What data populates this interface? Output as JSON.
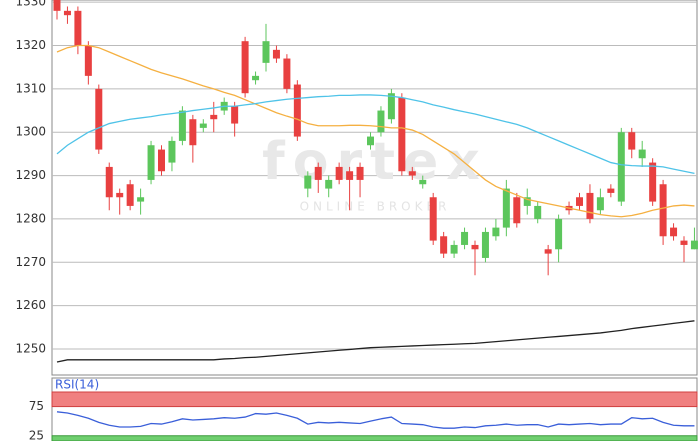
{
  "chart_data": {
    "type": "candlestick",
    "watermark": "fortex",
    "watermark_sub": "ONLINE BROKER",
    "ylim": [
      1244,
      1330.5
    ],
    "yticks": [
      1250,
      1260,
      1270,
      1280,
      1290,
      1300,
      1310,
      1320,
      1330
    ],
    "grid": true,
    "up_color": "#5cc65c",
    "down_color": "#e84040",
    "open": [
      1331,
      1328,
      1328,
      1320,
      1310,
      1292,
      1286,
      1288,
      1284,
      1289,
      1296,
      1293,
      1298,
      1303,
      1301,
      1304,
      1305,
      1306,
      1321,
      1312,
      1316,
      1319,
      1317,
      1311,
      1287,
      1292,
      1287,
      1292,
      1291,
      1292,
      1297,
      1300,
      1303,
      1308,
      1291,
      1288,
      1285,
      1276,
      1272,
      1274,
      1274,
      1271,
      1276,
      1278,
      1285,
      1283,
      1280,
      1273,
      1273,
      1283,
      1285,
      1286,
      1282,
      1287,
      1284,
      1300,
      1294,
      1293,
      1288,
      1278,
      1275,
      1273
    ],
    "high": [
      1332,
      1329,
      1329,
      1321,
      1311,
      1293,
      1287,
      1289,
      1287,
      1298,
      1297,
      1299,
      1306,
      1304,
      1303,
      1307,
      1308,
      1307,
      1322,
      1314,
      1325,
      1320,
      1318,
      1312,
      1291,
      1293,
      1290,
      1293,
      1292,
      1293,
      1300,
      1306,
      1310,
      1309,
      1292,
      1290,
      1286,
      1277,
      1275,
      1278,
      1275,
      1278,
      1280,
      1289,
      1286,
      1287,
      1284,
      1274,
      1281,
      1284,
      1286,
      1288,
      1287,
      1288,
      1301,
      1301,
      1298,
      1294,
      1289,
      1279,
      1276,
      1278
    ],
    "low": [
      1326,
      1325,
      1318,
      1311,
      1295,
      1282,
      1281,
      1282,
      1281,
      1288,
      1290,
      1291,
      1297,
      1293,
      1300,
      1300,
      1304,
      1299,
      1308,
      1311,
      1314,
      1316,
      1309,
      1298,
      1285,
      1286,
      1285,
      1288,
      1282,
      1285,
      1296,
      1299,
      1302,
      1290,
      1289,
      1287,
      1274,
      1271,
      1271,
      1273,
      1267,
      1270,
      1275,
      1276,
      1278,
      1281,
      1279,
      1267,
      1270,
      1281,
      1282,
      1279,
      1281,
      1285,
      1283,
      1294,
      1292,
      1283,
      1274,
      1275,
      1270,
      1273
    ],
    "close": [
      1328,
      1327,
      1320,
      1313,
      1296,
      1285,
      1285,
      1283,
      1285,
      1297,
      1291,
      1298,
      1305,
      1297,
      1302,
      1303,
      1307,
      1302,
      1309,
      1313,
      1321,
      1317,
      1310,
      1299,
      1290,
      1289,
      1289,
      1289,
      1289,
      1289,
      1299,
      1305,
      1309,
      1291,
      1290,
      1289,
      1275,
      1272,
      1274,
      1277,
      1273,
      1277,
      1278,
      1287,
      1279,
      1285,
      1283,
      1272,
      1280,
      1282,
      1283,
      1280,
      1285,
      1286,
      1300,
      1296,
      1296,
      1284,
      1276,
      1276,
      1274,
      1275
    ],
    "lines": [
      {
        "color": "#f5b041",
        "values": [
          1318.5,
          1319.5,
          1320,
          1320,
          1319.5,
          1318.5,
          1317.5,
          1316.5,
          1315.5,
          1314.5,
          1313.7,
          1313,
          1312.3,
          1311.5,
          1310.7,
          1310,
          1309.2,
          1308.5,
          1307.5,
          1306.5,
          1305.5,
          1304.5,
          1303.7,
          1303,
          1302,
          1301.5,
          1301.5,
          1301.5,
          1301.6,
          1301.6,
          1301.5,
          1301.3,
          1301,
          1301,
          1300.5,
          1299.5,
          1298,
          1296.5,
          1295,
          1293,
          1291,
          1289,
          1287.5,
          1286.5,
          1285.5,
          1284.5,
          1284,
          1283.5,
          1283,
          1282.5,
          1282,
          1281.5,
          1281,
          1280.7,
          1280.5,
          1280.8,
          1281.3,
          1282,
          1282.5,
          1283,
          1283.2,
          1283
        ]
      },
      {
        "color": "#4fc3e8",
        "values": [
          1295,
          1297,
          1298.5,
          1300,
          1301,
          1302,
          1302.5,
          1303,
          1303.3,
          1303.6,
          1304,
          1304.3,
          1304.6,
          1305,
          1305.3,
          1305.6,
          1306,
          1306,
          1306.3,
          1306.6,
          1307,
          1307.3,
          1307.6,
          1307.8,
          1308,
          1308.2,
          1308.3,
          1308.5,
          1308.5,
          1308.6,
          1308.6,
          1308.5,
          1308.3,
          1308,
          1307.5,
          1307,
          1306.3,
          1305.8,
          1305.2,
          1304.7,
          1304.2,
          1303.6,
          1303,
          1302.4,
          1301.8,
          1301,
          1300,
          1299,
          1298,
          1297,
          1296,
          1295,
          1294,
          1293,
          1292.5,
          1292.3,
          1292.2,
          1292.2,
          1292,
          1291.5,
          1291,
          1290.5
        ]
      },
      {
        "color": "#222222",
        "values": [
          1247,
          1247.5,
          1247.5,
          1247.5,
          1247.5,
          1247.5,
          1247.5,
          1247.5,
          1247.5,
          1247.5,
          1247.5,
          1247.5,
          1247.5,
          1247.5,
          1247.5,
          1247.5,
          1247.7,
          1247.8,
          1248,
          1248.1,
          1248.3,
          1248.5,
          1248.7,
          1248.9,
          1249.1,
          1249.3,
          1249.5,
          1249.7,
          1249.9,
          1250.1,
          1250.3,
          1250.4,
          1250.5,
          1250.6,
          1250.7,
          1250.8,
          1250.9,
          1251,
          1251.1,
          1251.2,
          1251.3,
          1251.5,
          1251.7,
          1251.9,
          1252.1,
          1252.3,
          1252.5,
          1252.7,
          1252.9,
          1253.1,
          1253.3,
          1253.5,
          1253.7,
          1254,
          1254.3,
          1254.7,
          1255,
          1255.3,
          1255.6,
          1255.9,
          1256.2,
          1256.5
        ]
      }
    ],
    "rsi": {
      "title": "RSI(14)",
      "color": "#3a5fd9",
      "ylim": [
        16,
        100
      ],
      "yticks": [
        25,
        75
      ],
      "overbought_color": "#f08080",
      "oversold_color": "#6fcf6f",
      "values": [
        66,
        64,
        60,
        55,
        48,
        43,
        40,
        40,
        41,
        46,
        45,
        49,
        54,
        52,
        53,
        54,
        56,
        55,
        57,
        63,
        62,
        64,
        60,
        55,
        45,
        48,
        47,
        48,
        47,
        46,
        50,
        54,
        57,
        46,
        45,
        44,
        40,
        38,
        38,
        40,
        39,
        42,
        43,
        45,
        43,
        44,
        44,
        40,
        45,
        44,
        45,
        46,
        44,
        45,
        45,
        56,
        54,
        55,
        48,
        43,
        42,
        42
      ]
    }
  }
}
